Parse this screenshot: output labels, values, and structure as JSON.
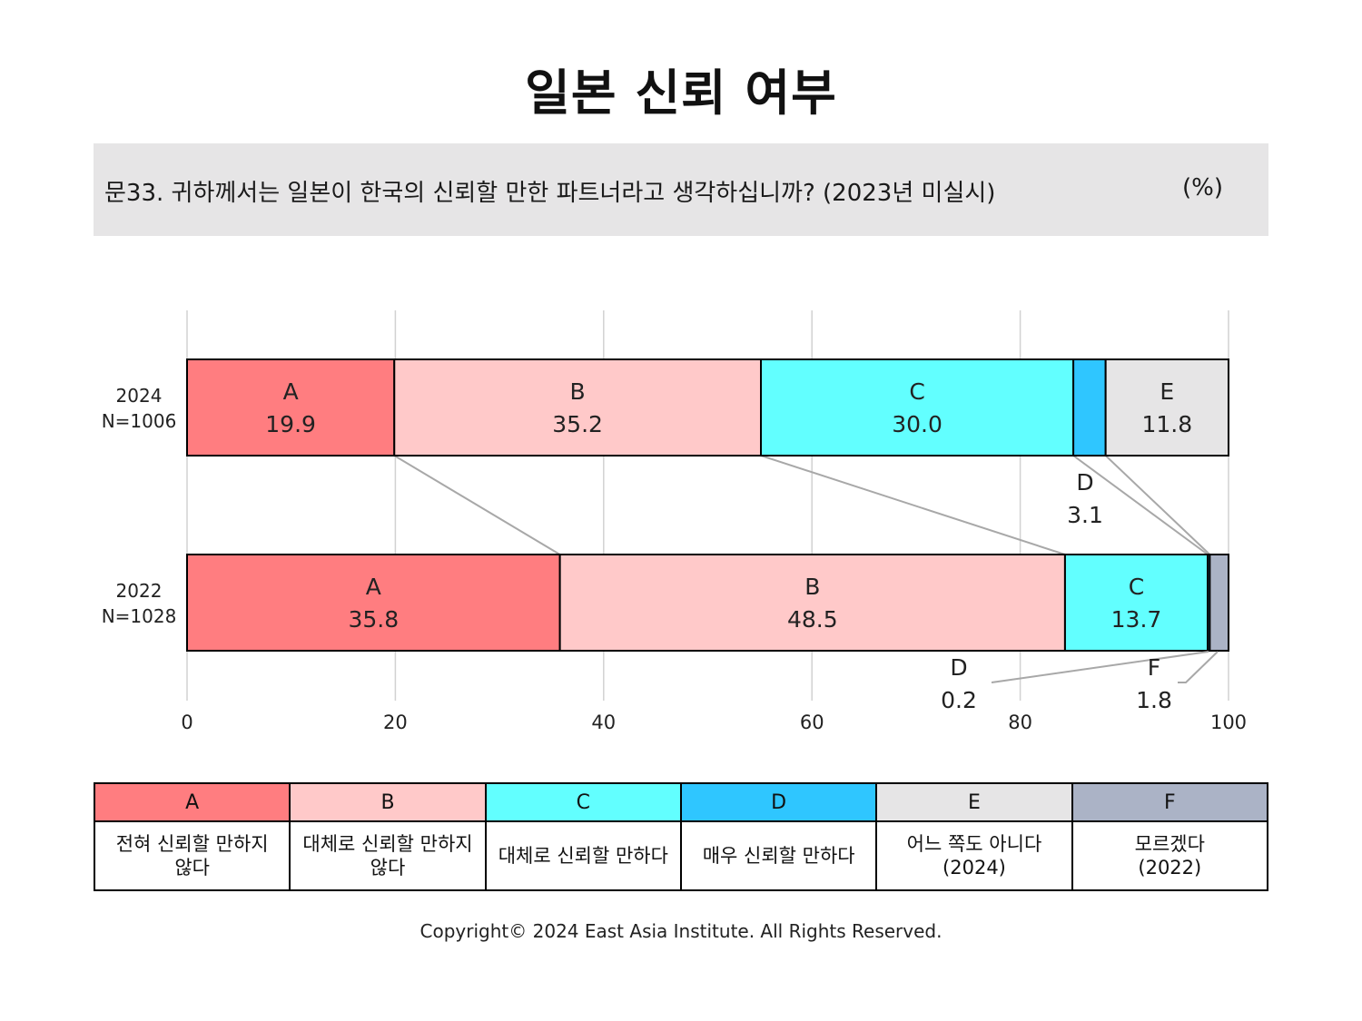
{
  "title": "일본 신뢰 여부",
  "question": "문33. 귀하께서는 일본이 한국의 신뢰할 만한 파트너라고 생각하십니까? (2023년 미실시)",
  "unit": "(%)",
  "copyright": "Copyright© 2024 East Asia Institute. All Rights Reserved.",
  "colors": {
    "A": "#ff7d80",
    "B": "#ffc9c9",
    "C": "#62ffff",
    "D": "#2fc6ff",
    "E": "#e6e5e6",
    "F": "#abb3c6"
  },
  "legend": [
    {
      "key": "A",
      "lines": [
        "전혀 신뢰할 만하지",
        "않다"
      ]
    },
    {
      "key": "B",
      "lines": [
        "대체로 신뢰할 만하지",
        "않다"
      ]
    },
    {
      "key": "C",
      "lines": [
        "대체로 신뢰할 만하다"
      ]
    },
    {
      "key": "D",
      "lines": [
        "매우 신뢰할 만하다"
      ]
    },
    {
      "key": "E",
      "lines": [
        "어느 쪽도 아니다",
        "(2024)"
      ]
    },
    {
      "key": "F",
      "lines": [
        "모르겠다",
        "(2022)"
      ]
    }
  ],
  "chart_data": {
    "type": "bar",
    "orientation": "horizontal",
    "stacked": true,
    "xlim": [
      0,
      100
    ],
    "xticks": [
      0,
      20,
      40,
      60,
      80,
      100
    ],
    "grid": true,
    "categories": [
      {
        "year": "2024",
        "n": "N=1006"
      },
      {
        "year": "2022",
        "n": "N=1028"
      }
    ],
    "series": [
      {
        "name": "A",
        "values": [
          19.9,
          35.8
        ]
      },
      {
        "name": "B",
        "values": [
          35.2,
          48.5
        ]
      },
      {
        "name": "C",
        "values": [
          30.0,
          13.7
        ]
      },
      {
        "name": "D",
        "values": [
          3.1,
          0.2
        ]
      },
      {
        "name": "E",
        "values": [
          11.8,
          null
        ]
      },
      {
        "name": "F",
        "values": [
          null,
          1.8
        ]
      }
    ],
    "value_labels": [
      [
        "19.9",
        "35.2",
        "30.0",
        "3.1",
        "11.8",
        null
      ],
      [
        "35.8",
        "48.5",
        "13.7",
        "0.2",
        null,
        "1.8"
      ]
    ]
  }
}
